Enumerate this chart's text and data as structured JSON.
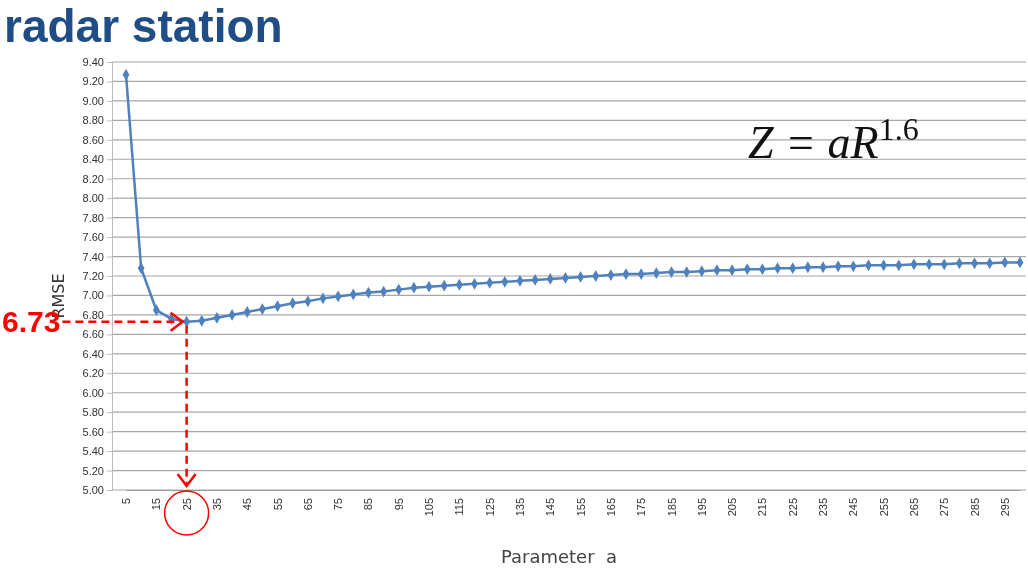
{
  "chart_data": {
    "type": "line",
    "title": "radar station",
    "xlabel": "Parameter  a",
    "ylabel": "RMSE",
    "categories": [
      "5",
      null,
      "15",
      null,
      "25",
      null,
      "35",
      null,
      "45",
      null,
      "55",
      null,
      "65",
      null,
      "75",
      null,
      "85",
      null,
      "95",
      null,
      "105",
      null,
      "115",
      null,
      "125",
      null,
      "135",
      null,
      "145",
      null,
      "155",
      null,
      "165",
      null,
      "175",
      null,
      "185",
      null,
      "195",
      null,
      "205",
      null,
      "215",
      null,
      "225",
      null,
      "235",
      null,
      "245",
      null,
      "255",
      null,
      "265",
      null,
      "275",
      null,
      "285",
      null,
      "295",
      null
    ],
    "series": [
      {
        "color": "#4f81bd",
        "values": [
          9.27,
          7.28,
          6.85,
          6.76,
          6.73,
          6.74,
          6.77,
          6.8,
          6.83,
          6.86,
          6.89,
          6.92,
          6.94,
          6.97,
          6.99,
          7.01,
          7.03,
          7.04,
          7.06,
          7.08,
          7.09,
          7.1,
          7.11,
          7.12,
          7.13,
          7.14,
          7.15,
          7.16,
          7.17,
          7.18,
          7.19,
          7.2,
          7.21,
          7.22,
          7.22,
          7.23,
          7.24,
          7.24,
          7.25,
          7.26,
          7.26,
          7.27,
          7.27,
          7.28,
          7.28,
          7.29,
          7.29,
          7.3,
          7.3,
          7.31,
          7.31,
          7.31,
          7.32,
          7.32,
          7.32,
          7.33,
          7.33,
          7.33,
          7.34,
          7.34
        ]
      }
    ],
    "ylim": [
      5,
      9.4
    ],
    "yticks": [
      {
        "value": 5,
        "label": "5.00"
      },
      {
        "value": 5.2,
        "label": "5.20"
      },
      {
        "value": 5.4,
        "label": "5.40"
      },
      {
        "value": 5.6,
        "label": "5.60"
      },
      {
        "value": 5.8,
        "label": "5.80"
      },
      {
        "value": 6,
        "label": "6.00"
      },
      {
        "value": 6.2,
        "label": "6.20"
      },
      {
        "value": 6.4,
        "label": "6.40"
      },
      {
        "value": 6.6,
        "label": "6.60"
      },
      {
        "value": 6.8,
        "label": "6.80"
      },
      {
        "value": 7,
        "label": "7.00"
      },
      {
        "value": 7.2,
        "label": "7.20"
      },
      {
        "value": 7.4,
        "label": "7.40"
      },
      {
        "value": 7.6,
        "label": "7.60"
      },
      {
        "value": 7.8,
        "label": "7.80"
      },
      {
        "value": 8,
        "label": "8.00"
      },
      {
        "value": 8.2,
        "label": "8.20"
      },
      {
        "value": 8.4,
        "label": "8.40"
      },
      {
        "value": 8.6,
        "label": "8.60"
      },
      {
        "value": 8.8,
        "label": "8.80"
      },
      {
        "value": 9,
        "label": "9.00"
      },
      {
        "value": 9.2,
        "label": "9.20"
      },
      {
        "value": 9.4,
        "label": "9.40"
      }
    ],
    "grid": "y",
    "marker": "diamond",
    "line_style": "solid",
    "annotations": [
      {
        "text": "6.73",
        "x": "25",
        "y": 6.73
      },
      "Z = aR$^{1.6}$"
    ]
  }
}
